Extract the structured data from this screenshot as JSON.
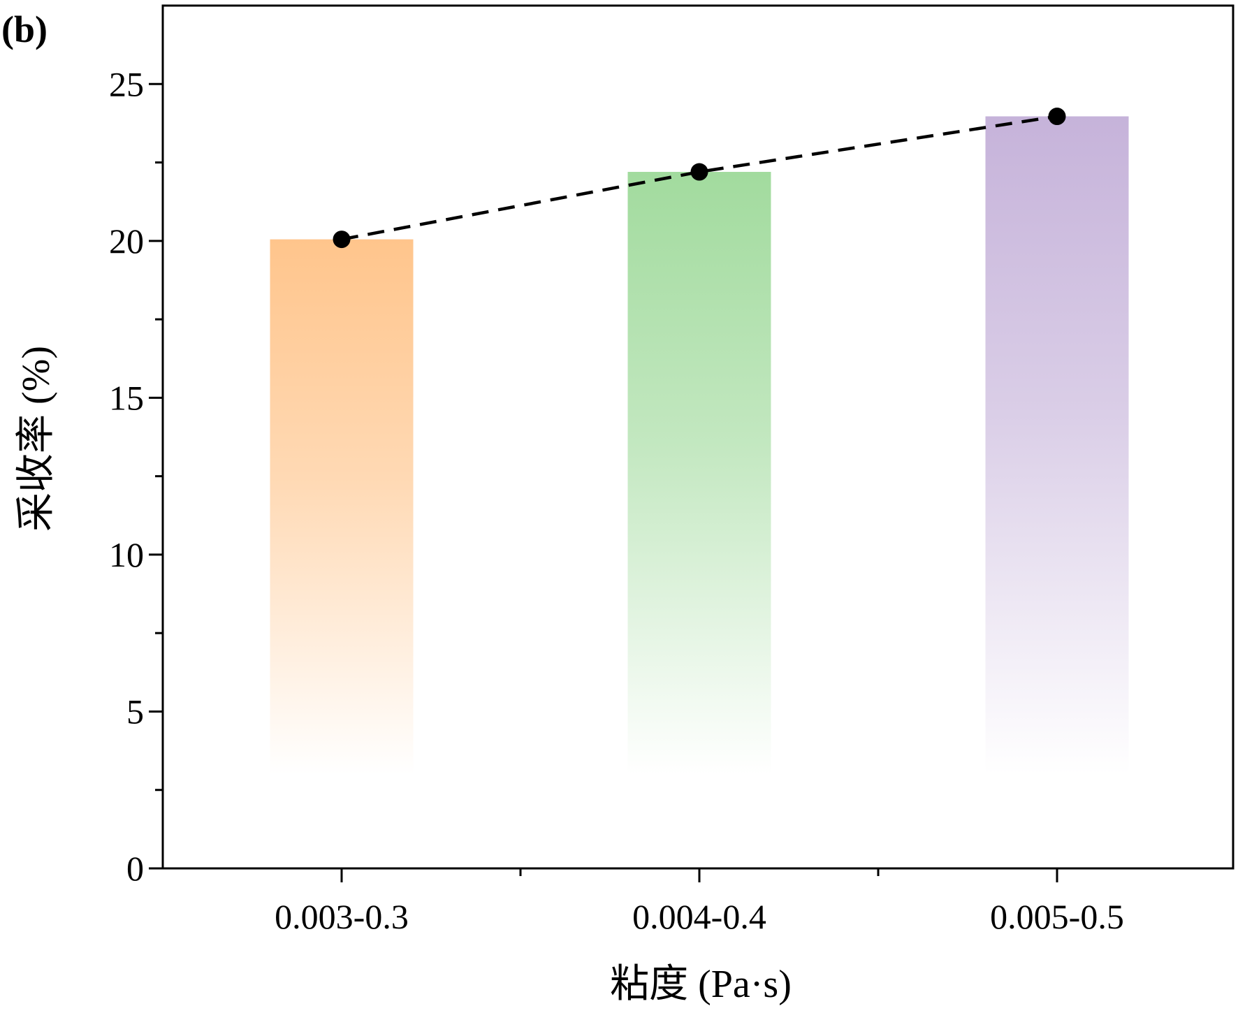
{
  "panel_label": "(b)",
  "colors": {
    "bar_1": "#FFC58C",
    "bar_2": "#A2DB9E",
    "bar_3": "#C6B3DA",
    "line": "#000000",
    "axis": "#000000"
  },
  "chart_data": {
    "type": "bar",
    "title": "",
    "xlabel": "粘度 (Pa·s)",
    "ylabel": "采收率 (%)",
    "categories": [
      "0.003-0.3",
      "0.004-0.4",
      "0.005-0.5"
    ],
    "values": [
      20.05,
      22.2,
      23.97
    ],
    "ylim": [
      0,
      27.5
    ],
    "yticks": [
      0,
      5,
      10,
      15,
      20,
      25
    ],
    "ytick_labels": [
      "0",
      "5",
      "10",
      "15",
      "20",
      "25"
    ],
    "y_minor_step": 2.5,
    "grid": false,
    "overlay": {
      "type": "line",
      "style": "dashed",
      "marker": "circle",
      "values": [
        20.05,
        22.2,
        23.97
      ]
    }
  }
}
